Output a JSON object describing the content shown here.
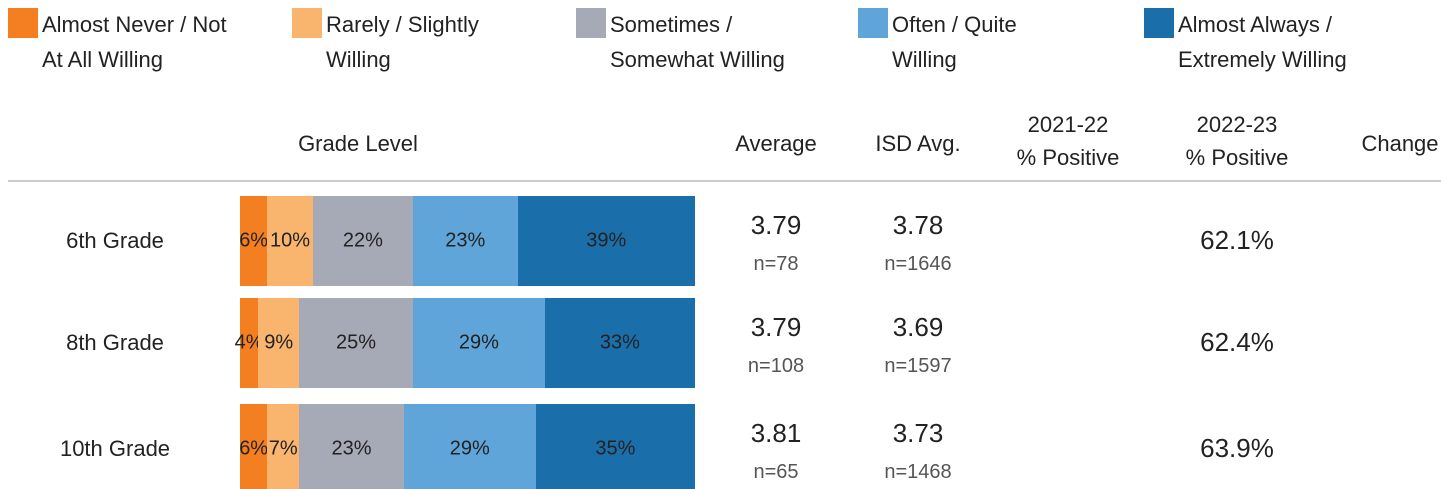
{
  "chart_data": {
    "type": "stacked-bar",
    "categories": [
      "6th Grade",
      "8th Grade",
      "10th Grade"
    ],
    "series": [
      {
        "name": "Almost Never / Not\nAt All Willing",
        "color": "#f47f20",
        "values": [
          6,
          4,
          6
        ],
        "value_labels": [
          "6%",
          "4%",
          "6%"
        ]
      },
      {
        "name": "Rarely / Slightly\nWilling",
        "color": "#f9b56e",
        "values": [
          10,
          9,
          7
        ],
        "value_labels": [
          "10%",
          "9%",
          "7%"
        ]
      },
      {
        "name": "Sometimes /\nSomewhat Willing",
        "color": "#a6a9b6",
        "values": [
          22,
          25,
          23
        ],
        "value_labels": [
          "22%",
          "25%",
          "23%"
        ]
      },
      {
        "name": "Often / Quite\nWilling",
        "color": "#5fa5d9",
        "values": [
          23,
          29,
          29
        ],
        "value_labels": [
          "23%",
          "29%",
          "29%"
        ]
      },
      {
        "name": "Almost Always /\nExtremely Willing",
        "color": "#1a6faa",
        "values": [
          39,
          33,
          35
        ],
        "value_labels": [
          "39%",
          "33%",
          "35%"
        ]
      }
    ],
    "xlim": [
      0,
      100
    ],
    "columns": [
      "Grade Level",
      "Average",
      "ISD Avg.",
      "2021-22\n% Positive",
      "2022-23\n% Positive",
      "Change"
    ],
    "average": [
      "3.79",
      "3.79",
      "3.81"
    ],
    "average_n": [
      "n=78",
      "n=108",
      "n=65"
    ],
    "isd_average": [
      "3.78",
      "3.69",
      "3.73"
    ],
    "isd_n": [
      "n=1646",
      "n=1597",
      "n=1468"
    ],
    "positive_2022_23": [
      "62.1%",
      "62.4%",
      "63.9%"
    ]
  }
}
